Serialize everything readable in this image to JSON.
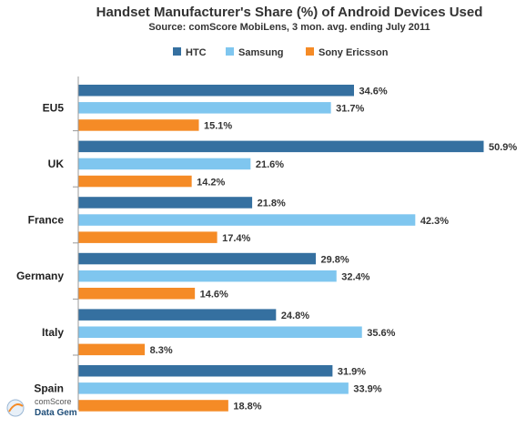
{
  "chart_data": {
    "type": "bar",
    "orientation": "horizontal",
    "title": "Handset Manufacturer's Share (%) of Android Devices Used",
    "subtitle": "Source: comScore MobiLens, 3 mon. avg. ending July 2011",
    "categories": [
      "EU5",
      "UK",
      "France",
      "Germany",
      "Italy",
      "Spain"
    ],
    "series": [
      {
        "name": "HTC",
        "color": "#3570a0",
        "values": [
          34.6,
          50.9,
          21.8,
          29.8,
          24.8,
          31.9
        ],
        "labels": [
          "34.6%",
          "50.9%",
          "21.8%",
          "29.8%",
          "24.8%",
          "31.9%"
        ]
      },
      {
        "name": "Samsung",
        "color": "#7fc6ef",
        "values": [
          31.7,
          21.6,
          42.3,
          32.4,
          35.6,
          33.9
        ],
        "labels": [
          "31.7%",
          "21.6%",
          "42.3%",
          "32.4%",
          "35.6%",
          "33.9%"
        ]
      },
      {
        "name": "Sony Ericsson",
        "color": "#f58b26",
        "values": [
          15.1,
          14.2,
          17.4,
          14.6,
          8.3,
          18.8
        ],
        "labels": [
          "15.1%",
          "14.2%",
          "17.4%",
          "14.6%",
          "8.3%",
          "18.8%"
        ]
      }
    ],
    "xlim": [
      0,
      52
    ],
    "legend": "top-center",
    "grid": false
  },
  "logo": {
    "line1": "comScore",
    "line2": "Data Gem"
  }
}
